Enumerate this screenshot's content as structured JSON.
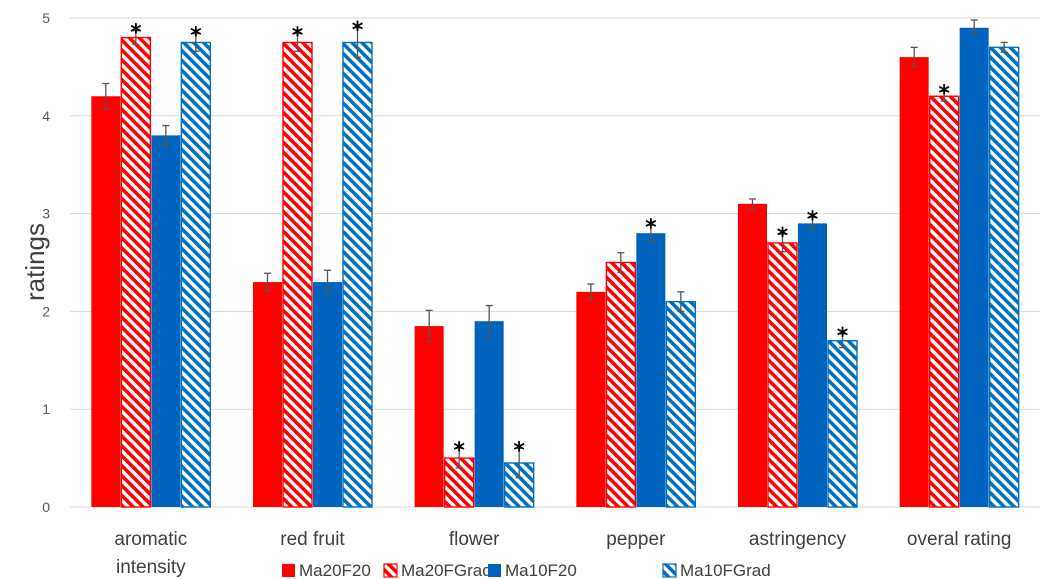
{
  "chart_data": {
    "type": "bar",
    "categories": [
      [
        "aromatic",
        "intensity"
      ],
      [
        "red fruit"
      ],
      [
        "flower"
      ],
      [
        "pepper"
      ],
      [
        "astringency"
      ],
      [
        "overal rating"
      ]
    ],
    "ylabel": "ratings",
    "ylim": [
      0,
      5
    ],
    "yticks": [
      0,
      1,
      2,
      3,
      4,
      5
    ],
    "grid": true,
    "legend_position": "bottom",
    "significance_marker": "*",
    "series": [
      {
        "name": "Ma20F20",
        "color": "#ff0000",
        "pattern": "solid",
        "values": [
          4.2,
          2.3,
          1.85,
          2.2,
          3.1,
          4.6
        ],
        "errors": [
          0.13,
          0.09,
          0.16,
          0.08,
          0.05,
          0.1
        ],
        "significant": [
          false,
          false,
          false,
          false,
          false,
          false
        ]
      },
      {
        "name": "Ma20FGrad",
        "color": "#ff0000",
        "pattern": "hatched",
        "values": [
          4.8,
          4.75,
          0.5,
          2.5,
          2.7,
          4.2
        ],
        "errors": [
          0.07,
          0.09,
          0.1,
          0.1,
          0.09,
          0.05
        ],
        "significant": [
          true,
          true,
          true,
          false,
          true,
          true
        ]
      },
      {
        "name": "Ma10F20",
        "color": "#0063be",
        "pattern": "solid",
        "values": [
          3.8,
          2.3,
          1.9,
          2.8,
          2.9,
          4.9
        ],
        "errors": [
          0.1,
          0.12,
          0.16,
          0.08,
          0.06,
          0.08
        ],
        "significant": [
          false,
          false,
          false,
          true,
          true,
          false
        ]
      },
      {
        "name": "Ma10FGrad",
        "color": "#0070c0",
        "pattern": "hatched",
        "values": [
          4.75,
          4.75,
          0.45,
          2.1,
          1.7,
          4.7
        ],
        "errors": [
          0.09,
          0.15,
          0.15,
          0.1,
          0.07,
          0.05
        ],
        "significant": [
          true,
          true,
          true,
          false,
          true,
          false
        ]
      }
    ]
  }
}
